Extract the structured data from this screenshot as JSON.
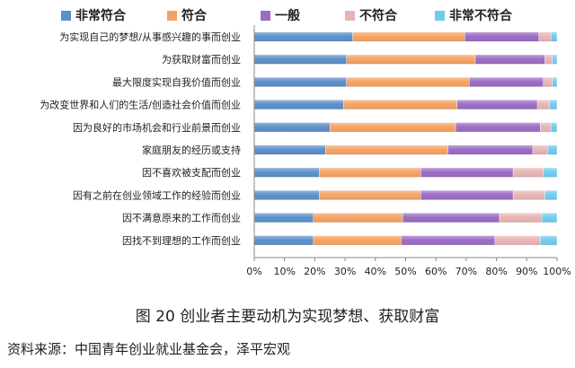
{
  "figure": {
    "caption": "图 20  创业者主要动机为实现梦想、获取财富",
    "source": "资料来源：中国青年创业就业基金会，泽平宏观"
  },
  "chart_data": {
    "type": "bar",
    "orientation": "horizontal",
    "stacked": "percent",
    "categories": [
      "为实现自己的梦想/从事感兴趣的事而创业",
      "为获取财富而创业",
      "最大限度实现自我价值而创业",
      "为改变世界和人们的生活/创造社会价值而创业",
      "因为良好的市场机会和行业前景而创业",
      "家庭朋友的经历或支持",
      "因不喜欢被支配而创业",
      "因有之前在创业领域工作的经验而创业",
      "因不满意原来的工作而创业",
      "因找不到理想的工作而创业"
    ],
    "series": [
      {
        "name": "非常符合",
        "color": "#5b8fc8",
        "values": [
          32.5,
          30.5,
          30.5,
          29.5,
          25,
          23.5,
          21.5,
          21.5,
          19.5,
          19.5
        ]
      },
      {
        "name": "符合",
        "color": "#f4a263",
        "values": [
          37,
          42.5,
          40.5,
          37.5,
          41.5,
          40.5,
          33.5,
          33.5,
          29.5,
          29
        ]
      },
      {
        "name": "一般",
        "color": "#9a6cc4",
        "values": [
          24.5,
          23,
          24.5,
          26.5,
          28,
          28,
          30.5,
          30.5,
          32,
          31
        ]
      },
      {
        "name": "不符合",
        "color": "#e8b4b4",
        "values": [
          4,
          2.5,
          3,
          4,
          3.5,
          5,
          10,
          10.5,
          14,
          15
        ]
      },
      {
        "name": "非常不符合",
        "color": "#6fcbee",
        "values": [
          2,
          1.5,
          1.5,
          2.5,
          2,
          3,
          4.5,
          4,
          5,
          5.5
        ]
      }
    ],
    "x_ticks": [
      "0%",
      "10%",
      "20%",
      "30%",
      "40%",
      "50%",
      "60%",
      "70%",
      "80%",
      "90%",
      "100%"
    ],
    "xlim": [
      0,
      100
    ],
    "legend": "top",
    "grid": false
  }
}
